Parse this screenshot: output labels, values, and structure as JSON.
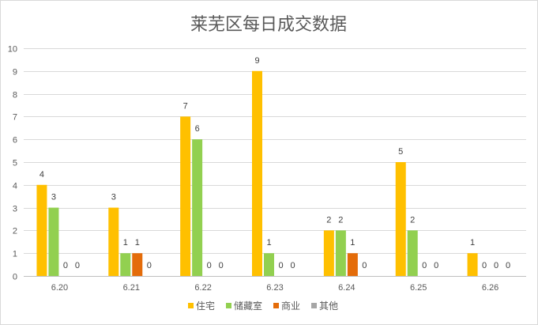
{
  "chart_data": {
    "type": "bar",
    "title": "莱芜区每日成交数据",
    "categories": [
      "6.20",
      "6.21",
      "6.22",
      "6.23",
      "6.24",
      "6.25",
      "6.26"
    ],
    "series": [
      {
        "name": "住宅",
        "color": "#FFC000",
        "values": [
          4,
          3,
          7,
          9,
          2,
          5,
          1
        ]
      },
      {
        "name": "储藏室",
        "color": "#92D050",
        "values": [
          3,
          1,
          6,
          1,
          2,
          2,
          0
        ]
      },
      {
        "name": "商业",
        "color": "#E46C0A",
        "values": [
          0,
          1,
          0,
          0,
          1,
          0,
          0
        ]
      },
      {
        "name": "其他",
        "color": "#A6A6A6",
        "values": [
          0,
          0,
          0,
          0,
          0,
          0,
          0
        ]
      }
    ],
    "yticks": [
      "0",
      "1",
      "2",
      "3",
      "4",
      "5",
      "6",
      "7",
      "8",
      "9",
      "10"
    ],
    "ylim": [
      0,
      10
    ],
    "grid": true,
    "legend_position": "bottom"
  }
}
